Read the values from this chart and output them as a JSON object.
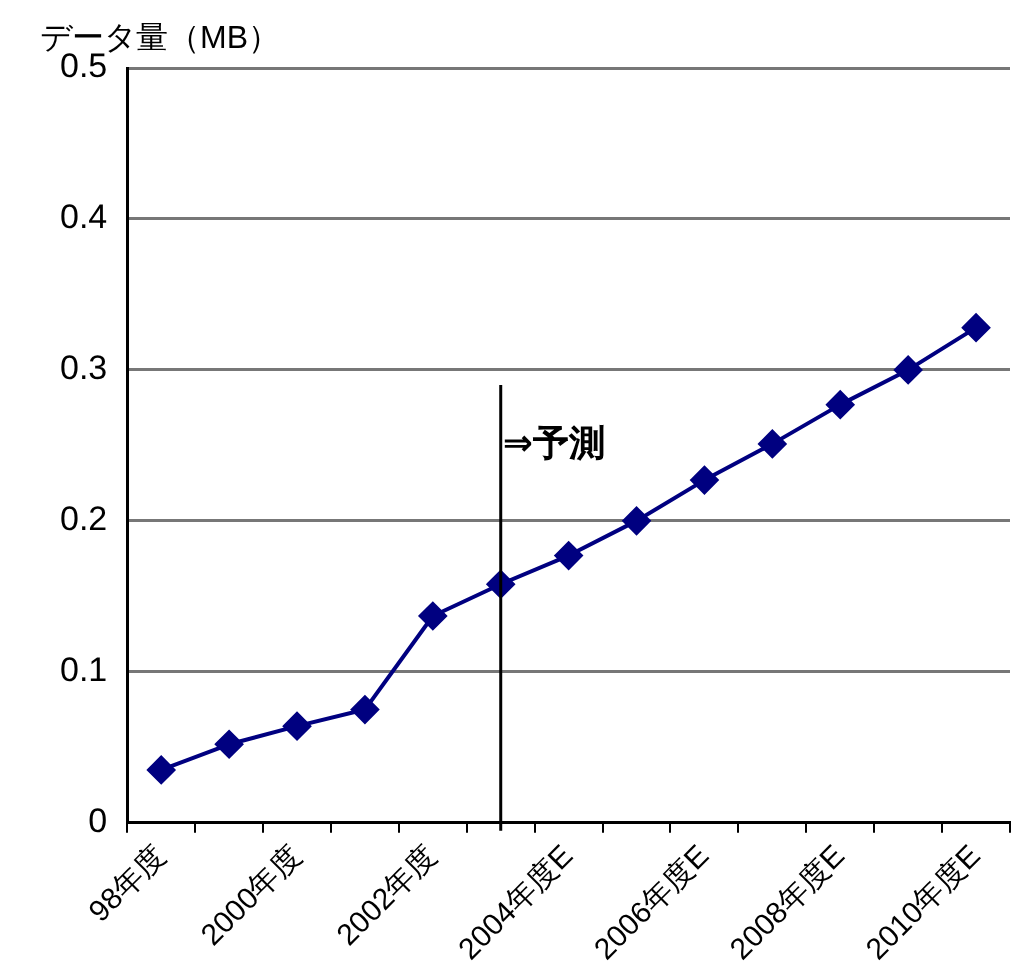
{
  "chart_data": {
    "type": "line",
    "ylabel": "データ量（MB）",
    "categories": [
      "98年度",
      null,
      "2000年度",
      null,
      "2002年度",
      null,
      "2004年度E",
      null,
      "2006年度E",
      null,
      "2008年度E",
      null,
      "2010年度E"
    ],
    "series": [
      {
        "color": "#000080",
        "values": [
          0.035,
          0.052,
          0.064,
          0.075,
          0.137,
          0.158,
          0.177,
          0.2,
          0.227,
          0.251,
          0.277,
          0.3,
          0.328
        ]
      }
    ],
    "ylim": [
      0,
      0.5
    ],
    "yticks": [
      0,
      0.1,
      0.2,
      0.3,
      0.4,
      0.5
    ],
    "grid": "y",
    "legend": false,
    "marker": "diamond",
    "line_style": "solid",
    "annotations": [
      "⇒予測"
    ]
  }
}
